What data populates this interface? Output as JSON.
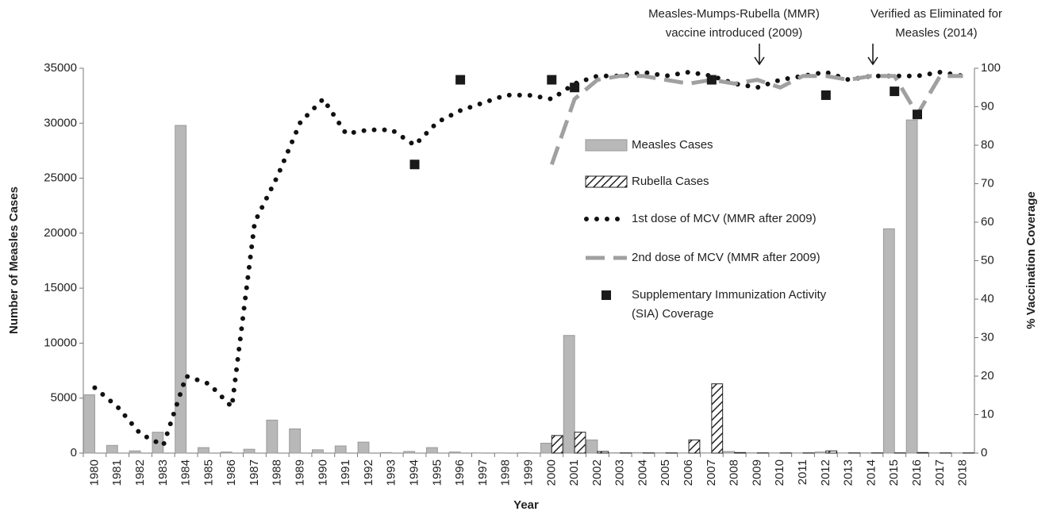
{
  "chart_data": {
    "type": "bar",
    "annotations": [
      [
        "Measles-Mumps-Rubella (MMR)",
        "vaccine introduced (2009)"
      ],
      [
        "Verified as Eliminated for",
        "Measles (2014)"
      ]
    ],
    "xlabel": "Year",
    "ylabel": "Number of Measles Cases",
    "y2label": "% Vaccination Coverage",
    "categories": [
      "1980",
      "1981",
      "1982",
      "1983",
      "1984",
      "1985",
      "1986",
      "1987",
      "1988",
      "1989",
      "1990",
      "1991",
      "1992",
      "1993",
      "1994",
      "1995",
      "1996",
      "1997",
      "1998",
      "1999",
      "2000",
      "2001",
      "2002",
      "2003",
      "2004",
      "2005",
      "2006",
      "2007",
      "2008",
      "2009",
      "2010",
      "2011",
      "2012",
      "2013",
      "2014",
      "2015",
      "2016",
      "2017",
      "2018"
    ],
    "series": [
      {
        "name": "Measles Cases",
        "type": "bar",
        "color": "#b8b8b8",
        "axis": "y",
        "values": [
          5300,
          700,
          200,
          1900,
          29800,
          500,
          100,
          350,
          3000,
          2200,
          300,
          650,
          1000,
          50,
          150,
          500,
          100,
          20,
          20,
          30,
          900,
          10700,
          1200,
          30,
          50,
          30,
          20,
          20,
          150,
          30,
          20,
          20,
          100,
          20,
          20,
          20400,
          30300,
          20,
          20
        ]
      },
      {
        "name": "Rubella Cases",
        "type": "bar",
        "color": "#222222",
        "pattern": "hatch",
        "axis": "y",
        "values": [
          null,
          null,
          null,
          null,
          null,
          null,
          null,
          null,
          null,
          null,
          null,
          null,
          null,
          null,
          null,
          null,
          null,
          null,
          null,
          null,
          1600,
          1900,
          150,
          20,
          20,
          20,
          1200,
          6300,
          50,
          20,
          20,
          20,
          200,
          20,
          20,
          20,
          50,
          20,
          20
        ]
      },
      {
        "name": "1st dose of MCV (MMR after 2009)",
        "type": "line",
        "dash": "dotted",
        "color": "#111111",
        "axis": "y2",
        "values": [
          17,
          12,
          5,
          2,
          20,
          18,
          12,
          60,
          72,
          86,
          92,
          83,
          84,
          84,
          80,
          86,
          89,
          91,
          93,
          93,
          92,
          96,
          98,
          98,
          99,
          98,
          99,
          98,
          96,
          95,
          97,
          98,
          99,
          97,
          98,
          98,
          98,
          99,
          98
        ]
      },
      {
        "name": "2nd dose of MCV (MMR after 2009)",
        "type": "line",
        "dash": "dashed",
        "color": "#a0a0a0",
        "axis": "y2",
        "values": [
          null,
          null,
          null,
          null,
          null,
          null,
          null,
          null,
          null,
          null,
          null,
          null,
          null,
          null,
          null,
          null,
          null,
          null,
          null,
          null,
          75,
          92,
          97,
          98,
          98,
          97,
          96,
          97,
          96,
          97,
          95,
          98,
          98,
          97,
          98,
          98,
          88,
          98,
          98
        ]
      },
      {
        "name": "Supplementary Immunization Activity (SIA) Coverage",
        "type": "scatter",
        "color": "#1a1a1a",
        "axis": "y2",
        "values": [
          null,
          null,
          null,
          null,
          null,
          null,
          null,
          null,
          null,
          null,
          null,
          null,
          null,
          null,
          75,
          null,
          97,
          null,
          null,
          null,
          97,
          95,
          null,
          null,
          null,
          null,
          null,
          97,
          null,
          null,
          null,
          null,
          93,
          null,
          null,
          94,
          88,
          null,
          null
        ]
      }
    ],
    "ylim": [
      0,
      35000
    ],
    "yticks": [
      0,
      5000,
      10000,
      15000,
      20000,
      25000,
      30000,
      35000
    ],
    "y2lim": [
      0,
      100
    ],
    "y2ticks": [
      0,
      10,
      20,
      30,
      40,
      50,
      60,
      70,
      80,
      90,
      100
    ],
    "grid": false
  }
}
